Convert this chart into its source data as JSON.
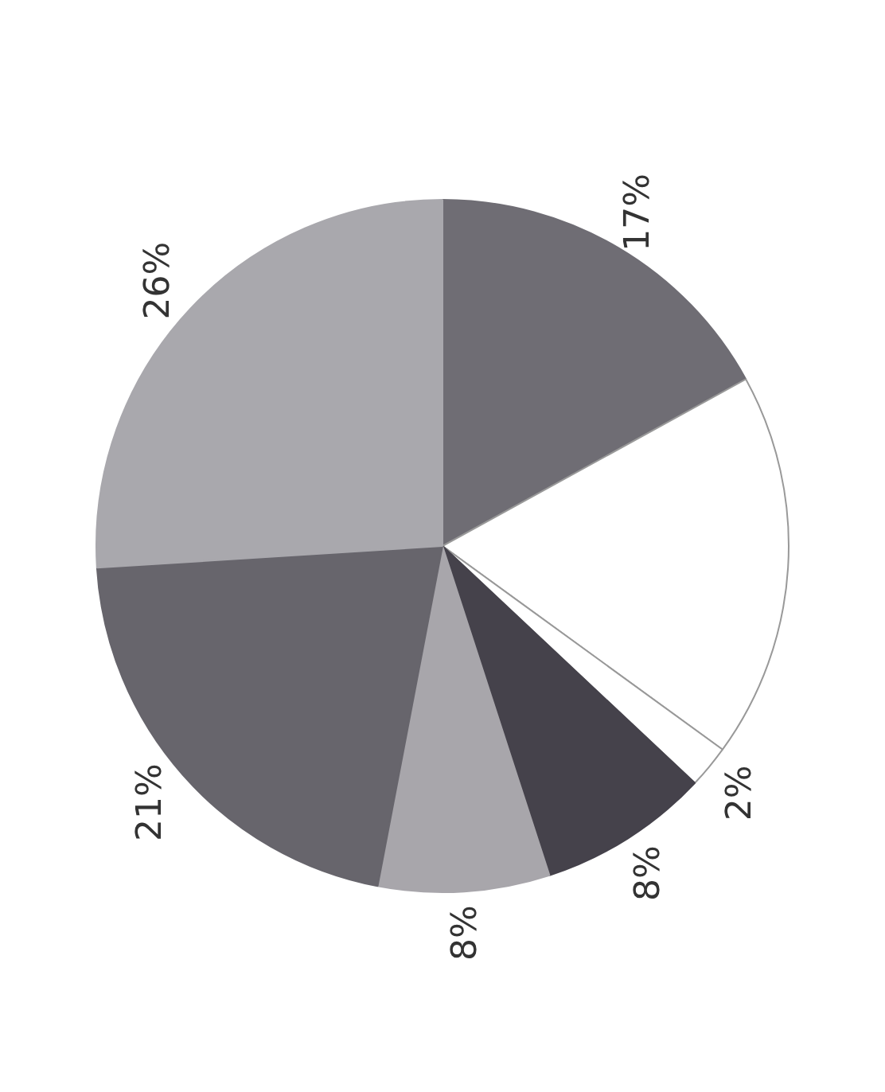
{
  "chart_data": {
    "type": "pie",
    "categories": [
      null,
      null,
      null,
      null,
      null,
      null,
      null
    ],
    "values": [
      17,
      18,
      2,
      8,
      8,
      21,
      26
    ],
    "colors": [
      "#6f6d74",
      "#ffffff",
      "#ffffff",
      "#45424b",
      "#a8a6ab",
      "#67656c",
      "#a9a8ad"
    ],
    "value_labels": [
      "17%",
      null,
      "2%",
      "8%",
      "8%",
      "21%",
      "26%"
    ],
    "legend": false
  }
}
